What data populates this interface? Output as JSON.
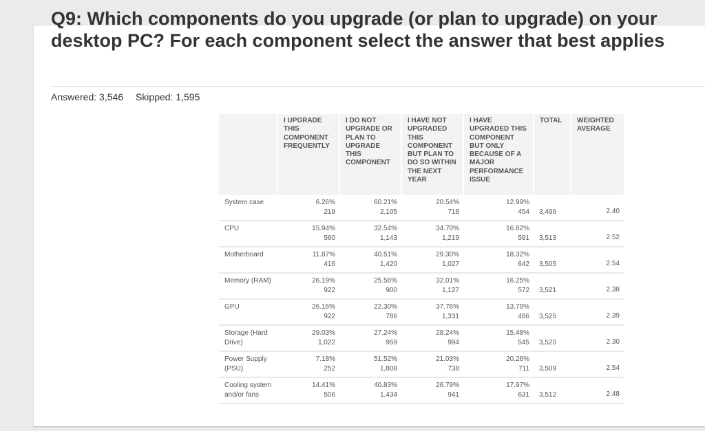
{
  "question": {
    "title": "Q9: Which components do you upgrade (or plan to upgrade) on your desktop PC? For each component select the answer that best applies",
    "answered": "Answered: 3,546",
    "skipped": "Skipped: 1,595"
  },
  "table": {
    "headers": [
      "",
      "I UPGRADE THIS COMPONENT FREQUENTLY",
      "I DO NOT UPGRADE OR PLAN TO UPGRADE THIS COMPONENT",
      "I HAVE NOT UPGRADED THIS COMPONENT BUT PLAN TO DO SO WITHIN THE NEXT YEAR",
      "I HAVE UPGRADED THIS COMPONENT BUT ONLY BECAUSE OF A MAJOR PERFORMANCE ISSUE",
      "TOTAL",
      "WEIGHTED AVERAGE"
    ],
    "rows": [
      {
        "label": "System case",
        "cells": [
          [
            "6.26%",
            "219"
          ],
          [
            "60.21%",
            "2,105"
          ],
          [
            "20.54%",
            "718"
          ],
          [
            "12.99%",
            "454"
          ]
        ],
        "total": "3,496",
        "wavg": "2.40"
      },
      {
        "label": "CPU",
        "cells": [
          [
            "15.94%",
            "560"
          ],
          [
            "32.54%",
            "1,143"
          ],
          [
            "34.70%",
            "1,219"
          ],
          [
            "16.82%",
            "591"
          ]
        ],
        "total": "3,513",
        "wavg": "2.52"
      },
      {
        "label": "Motherboard",
        "cells": [
          [
            "11.87%",
            "416"
          ],
          [
            "40.51%",
            "1,420"
          ],
          [
            "29.30%",
            "1,027"
          ],
          [
            "18.32%",
            "642"
          ]
        ],
        "total": "3,505",
        "wavg": "2.54"
      },
      {
        "label": "Memory (RAM)",
        "cells": [
          [
            "26.19%",
            "922"
          ],
          [
            "25.56%",
            "900"
          ],
          [
            "32.01%",
            "1,127"
          ],
          [
            "16.25%",
            "572"
          ]
        ],
        "total": "3,521",
        "wavg": "2.38"
      },
      {
        "label": "GPU",
        "cells": [
          [
            "26.16%",
            "922"
          ],
          [
            "22.30%",
            "786"
          ],
          [
            "37.76%",
            "1,331"
          ],
          [
            "13.79%",
            "486"
          ]
        ],
        "total": "3,525",
        "wavg": "2.39"
      },
      {
        "label": "Storage (Hard Drive)",
        "cells": [
          [
            "29.03%",
            "1,022"
          ],
          [
            "27.24%",
            "959"
          ],
          [
            "28.24%",
            "994"
          ],
          [
            "15.48%",
            "545"
          ]
        ],
        "total": "3,520",
        "wavg": "2.30"
      },
      {
        "label": "Power Supply (PSU)",
        "cells": [
          [
            "7.18%",
            "252"
          ],
          [
            "51.52%",
            "1,808"
          ],
          [
            "21.03%",
            "738"
          ],
          [
            "20.26%",
            "711"
          ]
        ],
        "total": "3,509",
        "wavg": "2.54"
      },
      {
        "label": "Cooling system and/or fans",
        "cells": [
          [
            "14.41%",
            "506"
          ],
          [
            "40.83%",
            "1,434"
          ],
          [
            "26.79%",
            "941"
          ],
          [
            "17.97%",
            "631"
          ]
        ],
        "total": "3,512",
        "wavg": "2.48"
      }
    ]
  }
}
